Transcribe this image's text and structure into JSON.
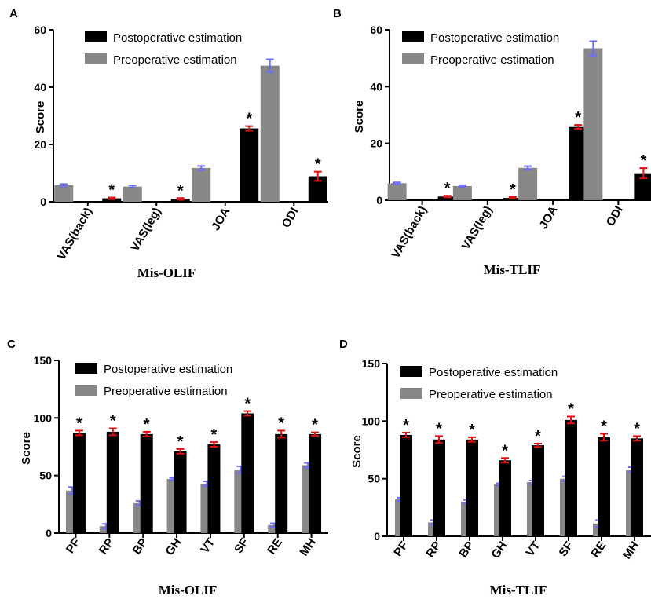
{
  "colors": {
    "postoperative": "#000000",
    "preoperative": "#888888",
    "pre_error": "#6b6bff",
    "post_error": "#e01010"
  },
  "chart_data": [
    {
      "panel": "A",
      "type": "bar",
      "title": "Mis-OLIF",
      "ylabel": "Score",
      "ylim": [
        0,
        60
      ],
      "yticks": [
        0,
        20,
        40,
        60
      ],
      "categories": [
        "VAS(back)",
        "VAS(leg)",
        "JOA",
        "ODI"
      ],
      "series": [
        {
          "name": "Preoperative estimation",
          "values": [
            5.8,
            5.3,
            11.8,
            47.5
          ],
          "errors": [
            0.4,
            0.4,
            0.7,
            2.2
          ]
        },
        {
          "name": "Postoperative estimation",
          "values": [
            1.2,
            1.0,
            25.6,
            8.9
          ],
          "errors": [
            0.3,
            0.3,
            0.8,
            1.6
          ]
        }
      ],
      "significance": [
        "*",
        "*",
        "*",
        "*"
      ],
      "legend": [
        "Postoperative estimation",
        "Preoperative estimation"
      ]
    },
    {
      "panel": "B",
      "type": "bar",
      "title": "Mis-TLIF",
      "ylabel": "Score",
      "ylim": [
        0,
        60
      ],
      "yticks": [
        0,
        20,
        40,
        60
      ],
      "categories": [
        "VAS(back)",
        "VAS(leg)",
        "JOA",
        "ODI"
      ],
      "series": [
        {
          "name": "Preoperative estimation",
          "values": [
            6.0,
            5.0,
            11.4,
            53.5
          ],
          "errors": [
            0.3,
            0.3,
            0.6,
            2.5
          ]
        },
        {
          "name": "Postoperative estimation",
          "values": [
            1.3,
            0.8,
            25.8,
            9.5
          ],
          "errors": [
            0.3,
            0.3,
            0.7,
            1.8
          ]
        }
      ],
      "significance": [
        "*",
        "*",
        "*",
        "*"
      ],
      "legend": [
        "Postoperative estimation",
        "Preoperative estimation"
      ]
    },
    {
      "panel": "C",
      "type": "bar",
      "title": "Mis-OLIF",
      "ylabel": "Score",
      "ylim": [
        0,
        150
      ],
      "yticks": [
        0,
        50,
        100,
        150
      ],
      "categories": [
        "PF",
        "RP",
        "BP",
        "GH",
        "VT",
        "SF",
        "RE",
        "MH"
      ],
      "series": [
        {
          "name": "Preoperative estimation",
          "values": [
            37,
            6,
            26,
            47,
            43,
            55,
            7,
            59
          ],
          "errors": [
            3,
            2,
            2,
            1,
            2,
            3,
            1.5,
            2
          ]
        },
        {
          "name": "Postoperative estimation",
          "values": [
            87,
            88,
            86,
            71,
            77,
            104,
            86,
            86
          ],
          "errors": [
            2,
            3,
            2,
            2,
            2,
            2,
            3,
            1.5
          ]
        }
      ],
      "significance": [
        "*",
        "*",
        "*",
        "*",
        "*",
        "*",
        "*",
        "*"
      ],
      "legend": [
        "Postoperative estimation",
        "Preoperative estimation"
      ]
    },
    {
      "panel": "D",
      "type": "bar",
      "title": "Mis-TLIF",
      "ylabel": "Score",
      "ylim": [
        0,
        150
      ],
      "yticks": [
        0,
        50,
        100,
        150
      ],
      "categories": [
        "PF",
        "RP",
        "BP",
        "GH",
        "VT",
        "SF",
        "RE",
        "MH"
      ],
      "series": [
        {
          "name": "Preoperative estimation",
          "values": [
            32,
            12,
            30,
            45,
            47,
            50,
            11,
            58
          ],
          "errors": [
            1.5,
            2,
            1.5,
            1,
            1.5,
            2,
            3,
            2
          ]
        },
        {
          "name": "Postoperative estimation",
          "values": [
            88,
            84,
            84,
            66,
            79,
            101,
            86,
            85
          ],
          "errors": [
            2,
            3,
            2,
            2,
            1.5,
            3,
            3,
            2
          ]
        }
      ],
      "significance": [
        "*",
        "*",
        "*",
        "*",
        "*",
        "*",
        "*",
        "*"
      ],
      "legend": [
        "Postoperative estimation",
        "Preoperative estimation"
      ]
    }
  ]
}
